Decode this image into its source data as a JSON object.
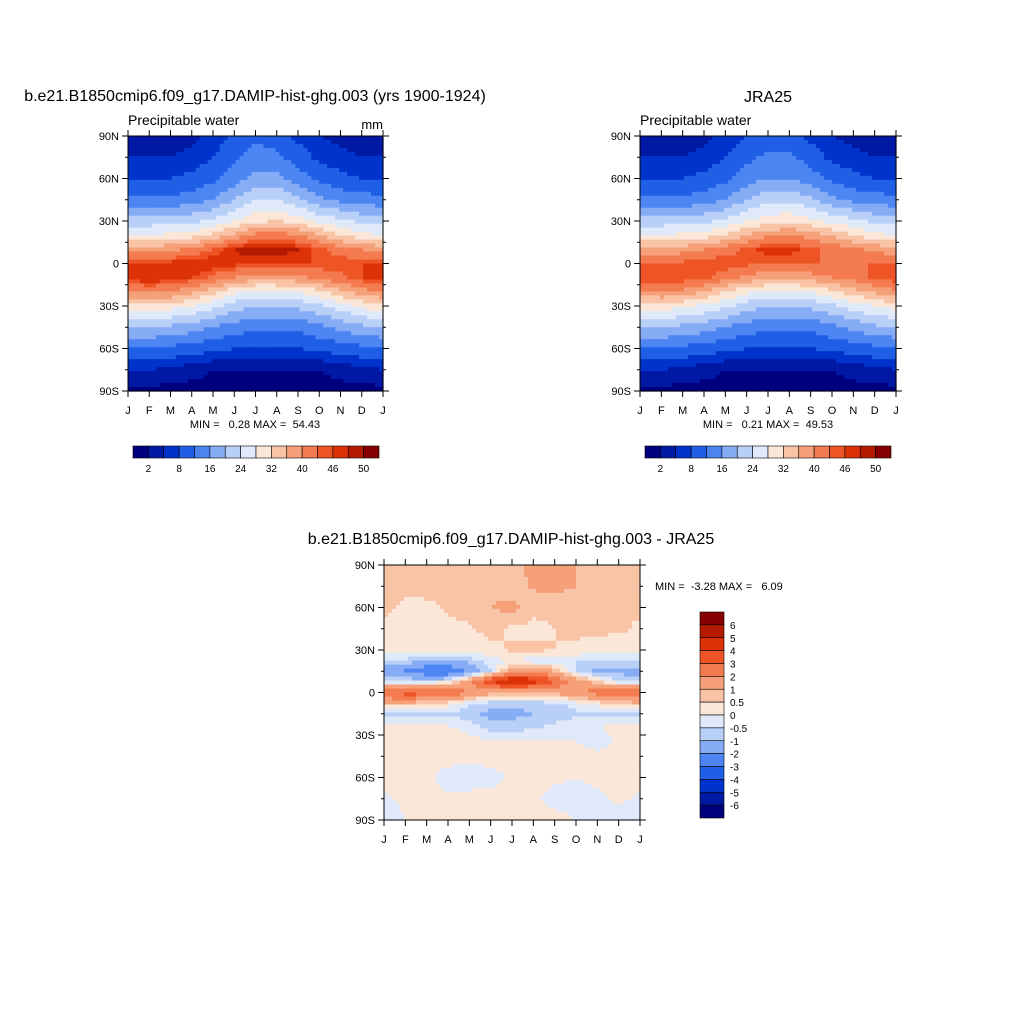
{
  "figure": {
    "panels": [
      {
        "title": "b.e21.B1850cmip6.f09_g17.DAMIP-hist-ghg.003 (yrs 1900-1924)",
        "left_label": "Precipitable water",
        "right_label": "mm",
        "stats": "MIN =   0.28 MAX =  54.43"
      },
      {
        "title": "JRA25",
        "left_label": "Precipitable water",
        "right_label": "",
        "stats": "MIN =   0.21 MAX =  49.53"
      },
      {
        "title": "b.e21.B1850cmip6.f09_g17.DAMIP-hist-ghg.003 - JRA25",
        "left_label": "",
        "right_label": "",
        "stats": "MIN =  -3.28 MAX =   6.09"
      }
    ]
  },
  "chart_data": [
    {
      "type": "heatmap",
      "title": "b.e21.B1850cmip6.f09_g17.DAMIP-hist-ghg.003 (yrs 1900-1924)",
      "subtitle_left": "Precipitable water",
      "units": "mm",
      "x_tick_labels": [
        "J",
        "F",
        "M",
        "A",
        "M",
        "J",
        "J",
        "A",
        "S",
        "O",
        "N",
        "D",
        "J"
      ],
      "y_tick_labels": [
        "90N",
        "60N",
        "30N",
        "0",
        "30S",
        "60S",
        "90S"
      ],
      "xlim": [
        0,
        12
      ],
      "ylim": [
        -90,
        90
      ],
      "stats": {
        "min": 0.28,
        "max": 54.43
      },
      "colorbar": {
        "orientation": "horizontal",
        "levels": [
          2,
          5,
          8,
          12,
          16,
          20,
          24,
          28,
          32,
          36,
          40,
          44,
          46,
          48,
          50
        ],
        "tick_labels": [
          "2",
          "8",
          "16",
          "24",
          "32",
          "40",
          "46",
          "50"
        ],
        "colors": [
          "#00007f",
          "#0019a5",
          "#0033cc",
          "#1f5fe6",
          "#4d85f2",
          "#86acf5",
          "#b8cff7",
          "#dfe9fa",
          "#fbe7d8",
          "#f9c3a6",
          "#f6a07a",
          "#f47a4f",
          "#ee5426",
          "#dd3208",
          "#b41a00",
          "#850000"
        ]
      },
      "field": {
        "grid_x": [
          0,
          1,
          2,
          3,
          4,
          5,
          6,
          7,
          8,
          9,
          10,
          11,
          12
        ],
        "grid_lat": [
          90,
          75,
          60,
          45,
          30,
          20,
          10,
          0,
          -10,
          -20,
          -30,
          -45,
          -60,
          -75,
          -90
        ],
        "values": [
          [
            3,
            3,
            3,
            4,
            6,
            9,
            11,
            10,
            7,
            5,
            4,
            3,
            3
          ],
          [
            5,
            5,
            5,
            6,
            8,
            11,
            14,
            13,
            10,
            7,
            6,
            5,
            5
          ],
          [
            8,
            8,
            8,
            9,
            11,
            14,
            17,
            17,
            14,
            11,
            9,
            8,
            8
          ],
          [
            13,
            13,
            13,
            14,
            16,
            20,
            24,
            24,
            21,
            17,
            15,
            14,
            13
          ],
          [
            22,
            22,
            22,
            23,
            25,
            28,
            31,
            32,
            30,
            27,
            25,
            23,
            22
          ],
          [
            28,
            28,
            29,
            30,
            33,
            37,
            41,
            42,
            40,
            36,
            32,
            29,
            28
          ],
          [
            38,
            38,
            39,
            41,
            44,
            48,
            50,
            50,
            48,
            45,
            42,
            40,
            38
          ],
          [
            46,
            46,
            47,
            48,
            48,
            47,
            46,
            46,
            46,
            46,
            46,
            46,
            46
          ],
          [
            48,
            48,
            48,
            46,
            43,
            40,
            38,
            38,
            39,
            41,
            43,
            46,
            48
          ],
          [
            40,
            41,
            40,
            37,
            33,
            29,
            27,
            27,
            28,
            31,
            35,
            38,
            40
          ],
          [
            31,
            31,
            30,
            28,
            25,
            22,
            20,
            20,
            21,
            23,
            26,
            29,
            31
          ],
          [
            20,
            20,
            19,
            18,
            16,
            14,
            13,
            13,
            13,
            15,
            17,
            19,
            20
          ],
          [
            12,
            12,
            11,
            10,
            9,
            8,
            8,
            8,
            8,
            9,
            10,
            11,
            12
          ],
          [
            5,
            5,
            4,
            3,
            2,
            2,
            2,
            2,
            2,
            2,
            3,
            4,
            5
          ],
          [
            1,
            1,
            1,
            1,
            1,
            1,
            1,
            1,
            1,
            1,
            1,
            1,
            1
          ]
        ]
      }
    },
    {
      "type": "heatmap",
      "title": "JRA25",
      "subtitle_left": "Precipitable water",
      "x_tick_labels": [
        "J",
        "F",
        "M",
        "A",
        "M",
        "J",
        "J",
        "A",
        "S",
        "O",
        "N",
        "D",
        "J"
      ],
      "y_tick_labels": [
        "90N",
        "60N",
        "30N",
        "0",
        "30S",
        "60S",
        "90S"
      ],
      "xlim": [
        0,
        12
      ],
      "ylim": [
        -90,
        90
      ],
      "stats": {
        "min": 0.21,
        "max": 49.53
      },
      "colorbar": {
        "orientation": "horizontal",
        "levels": [
          2,
          5,
          8,
          12,
          16,
          20,
          24,
          28,
          32,
          36,
          40,
          44,
          46,
          48,
          50
        ],
        "tick_labels": [
          "2",
          "8",
          "16",
          "24",
          "32",
          "40",
          "46",
          "50"
        ],
        "colors": [
          "#00007f",
          "#0019a5",
          "#0033cc",
          "#1f5fe6",
          "#4d85f2",
          "#86acf5",
          "#b8cff7",
          "#dfe9fa",
          "#fbe7d8",
          "#f9c3a6",
          "#f6a07a",
          "#f47a4f",
          "#ee5426",
          "#dd3208",
          "#b41a00",
          "#850000"
        ]
      },
      "field": {
        "grid_x": [
          0,
          1,
          2,
          3,
          4,
          5,
          6,
          7,
          8,
          9,
          10,
          11,
          12
        ],
        "grid_lat": [
          90,
          75,
          60,
          45,
          30,
          20,
          10,
          0,
          -10,
          -20,
          -30,
          -45,
          -60,
          -75,
          -90
        ],
        "values": [
          [
            3,
            3,
            3,
            4,
            6,
            8,
            10,
            10,
            7,
            5,
            4,
            3,
            3
          ],
          [
            5,
            5,
            5,
            6,
            8,
            11,
            13,
            13,
            10,
            7,
            6,
            5,
            5
          ],
          [
            8,
            8,
            8,
            9,
            11,
            14,
            16,
            16,
            14,
            11,
            9,
            8,
            8
          ],
          [
            13,
            13,
            13,
            14,
            16,
            20,
            23,
            23,
            21,
            17,
            15,
            14,
            13
          ],
          [
            22,
            22,
            22,
            23,
            25,
            28,
            30,
            31,
            29,
            27,
            25,
            23,
            22
          ],
          [
            28,
            28,
            29,
            30,
            32,
            36,
            39,
            40,
            38,
            35,
            32,
            29,
            28
          ],
          [
            37,
            37,
            38,
            40,
            42,
            45,
            47,
            47,
            45,
            43,
            41,
            39,
            37
          ],
          [
            44,
            44,
            45,
            46,
            46,
            45,
            44,
            44,
            44,
            44,
            44,
            44,
            44
          ],
          [
            46,
            46,
            46,
            45,
            42,
            39,
            37,
            37,
            38,
            40,
            42,
            45,
            46
          ],
          [
            39,
            40,
            39,
            36,
            32,
            29,
            27,
            27,
            28,
            31,
            34,
            37,
            39
          ],
          [
            30,
            30,
            29,
            27,
            25,
            22,
            20,
            20,
            21,
            23,
            26,
            28,
            30
          ],
          [
            20,
            20,
            19,
            18,
            16,
            14,
            13,
            13,
            13,
            15,
            17,
            19,
            20
          ],
          [
            12,
            12,
            11,
            10,
            9,
            8,
            8,
            8,
            8,
            9,
            10,
            11,
            12
          ],
          [
            5,
            5,
            4,
            3,
            2,
            2,
            2,
            2,
            2,
            2,
            3,
            4,
            5
          ],
          [
            1,
            1,
            1,
            1,
            1,
            1,
            1,
            1,
            1,
            1,
            1,
            1,
            1
          ]
        ]
      }
    },
    {
      "type": "heatmap",
      "title": "b.e21.B1850cmip6.f09_g17.DAMIP-hist-ghg.003 - JRA25",
      "x_tick_labels": [
        "J",
        "F",
        "M",
        "A",
        "M",
        "J",
        "J",
        "A",
        "S",
        "O",
        "N",
        "D",
        "J"
      ],
      "y_tick_labels": [
        "90N",
        "60N",
        "30N",
        "0",
        "30S",
        "60S",
        "90S"
      ],
      "xlim": [
        0,
        12
      ],
      "ylim": [
        -90,
        90
      ],
      "stats": {
        "min": -3.28,
        "max": 6.09
      },
      "colorbar": {
        "orientation": "vertical",
        "levels": [
          -6,
          -5,
          -4,
          -3,
          -2,
          -1,
          -0.5,
          0,
          0.5,
          1,
          2,
          3,
          4,
          5,
          6
        ],
        "tick_labels": [
          "6",
          "5",
          "4",
          "3",
          "2",
          "1",
          "0.5",
          "0",
          "-0.5",
          "-1",
          "-2",
          "-3",
          "-4",
          "-5",
          "-6"
        ],
        "colors": [
          "#00007f",
          "#0019a5",
          "#0033cc",
          "#1f5fe6",
          "#4d85f2",
          "#86acf5",
          "#b8cff7",
          "#dfe9fa",
          "#fbe7d8",
          "#f9c3a6",
          "#f6a07a",
          "#f47a4f",
          "#ee5426",
          "#dd3208",
          "#b41a00",
          "#850000"
        ]
      },
      "field": {
        "grid_x": [
          0,
          1,
          2,
          3,
          4,
          5,
          6,
          7,
          8,
          9,
          10,
          11,
          12
        ],
        "grid_lat": [
          90,
          75,
          60,
          45,
          30,
          22,
          15,
          8,
          0,
          -8,
          -15,
          -25,
          -35,
          -45,
          -60,
          -75,
          -90
        ],
        "values": [
          [
            0.6,
            0.7,
            0.6,
            0.6,
            0.8,
            1.0,
            0.8,
            1.2,
            1.3,
            1.0,
            0.8,
            0.7,
            0.6
          ],
          [
            0.7,
            0.6,
            0.8,
            0.7,
            0.9,
            0.8,
            0.7,
            1.1,
            1.2,
            1.0,
            0.7,
            0.6,
            0.7
          ],
          [
            0.6,
            0.4,
            0.3,
            0.6,
            0.8,
            1.0,
            1.2,
            0.6,
            0.6,
            0.7,
            0.7,
            0.6,
            0.6
          ],
          [
            0.4,
            0.3,
            0.3,
            0.3,
            0.4,
            0.7,
            0.4,
            0.4,
            0.5,
            0.6,
            0.6,
            0.6,
            0.4
          ],
          [
            0.2,
            0.1,
            0.2,
            0.3,
            0.3,
            0.3,
            0.6,
            0.6,
            0.5,
            0.4,
            0.3,
            0.2,
            0.2
          ],
          [
            -0.4,
            -0.6,
            -1.2,
            -1.2,
            -0.8,
            -0.2,
            0.0,
            -0.3,
            -0.2,
            -0.5,
            -0.7,
            -0.5,
            -0.4
          ],
          [
            -1.5,
            -2.2,
            -2.8,
            -3.0,
            -1.8,
            -0.5,
            1.5,
            1.8,
            1.0,
            -0.5,
            -1.2,
            -1.2,
            -1.5
          ],
          [
            -0.5,
            -0.5,
            -0.6,
            -0.2,
            1.5,
            4.0,
            5.5,
            4.5,
            3.0,
            1.5,
            0.5,
            -0.5,
            -0.5
          ],
          [
            3.2,
            3.5,
            3.5,
            3.0,
            2.0,
            1.2,
            1.0,
            1.0,
            1.2,
            1.8,
            2.5,
            3.0,
            3.2
          ],
          [
            0.8,
            0.8,
            0.5,
            0.2,
            -0.4,
            -0.8,
            -0.8,
            -0.8,
            -0.6,
            -0.3,
            0.2,
            0.5,
            0.8
          ],
          [
            -0.6,
            -0.6,
            -0.6,
            -0.6,
            -0.8,
            -1.2,
            -1.2,
            -1.0,
            -0.8,
            -0.6,
            -0.6,
            -0.6,
            -0.6
          ],
          [
            0.3,
            0.2,
            0.2,
            0.1,
            -0.2,
            -0.7,
            -0.7,
            -0.6,
            -0.3,
            -0.2,
            0.0,
            0.2,
            0.3
          ],
          [
            0.4,
            0.3,
            0.3,
            0.3,
            0.2,
            0.1,
            0.2,
            0.2,
            0.1,
            0.0,
            -0.3,
            0.1,
            0.4
          ],
          [
            0.3,
            0.3,
            0.2,
            0.2,
            0.2,
            0.2,
            0.2,
            0.2,
            0.2,
            0.2,
            0.2,
            0.2,
            0.3
          ],
          [
            0.2,
            0.2,
            0.1,
            -0.2,
            -0.3,
            -0.2,
            0.1,
            0.2,
            0.1,
            0.0,
            0.1,
            0.2,
            0.2
          ],
          [
            -0.1,
            0.1,
            0.2,
            0.1,
            0.2,
            0.2,
            0.1,
            0.1,
            -0.2,
            -0.2,
            -0.1,
            0.1,
            -0.1
          ],
          [
            -0.3,
            0.0,
            0.2,
            0.2,
            0.2,
            0.2,
            0.2,
            0.2,
            0.2,
            0.0,
            -0.2,
            -0.2,
            -0.3
          ]
        ]
      }
    }
  ]
}
